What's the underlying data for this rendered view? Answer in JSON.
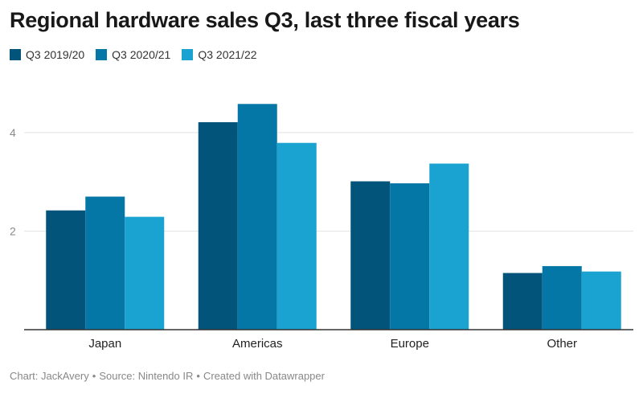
{
  "chart_data": {
    "type": "bar",
    "title": "Regional hardware sales Q3, last three fiscal years",
    "categories": [
      "Japan",
      "Americas",
      "Europe",
      "Other"
    ],
    "series": [
      {
        "name": "Q3 2019/20",
        "color": "#02547a",
        "values": [
          2.42,
          4.21,
          3.01,
          1.15
        ]
      },
      {
        "name": "Q3 2020/21",
        "color": "#0477a7",
        "values": [
          2.7,
          4.58,
          2.97,
          1.29
        ]
      },
      {
        "name": "Q3 2021/22",
        "color": "#1aa2d0",
        "values": [
          2.29,
          3.79,
          3.37,
          1.18
        ]
      }
    ],
    "yticks": [
      "2",
      "4"
    ],
    "ylim": [
      0,
      4.96
    ],
    "xlabel": "",
    "ylabel": "",
    "legend_position": "top-left",
    "grid": true
  },
  "footer": {
    "chart_by": "Chart: JackAvery",
    "source": "Source: Nintendo IR",
    "created_with": "Created with Datawrapper",
    "separator": "•"
  }
}
